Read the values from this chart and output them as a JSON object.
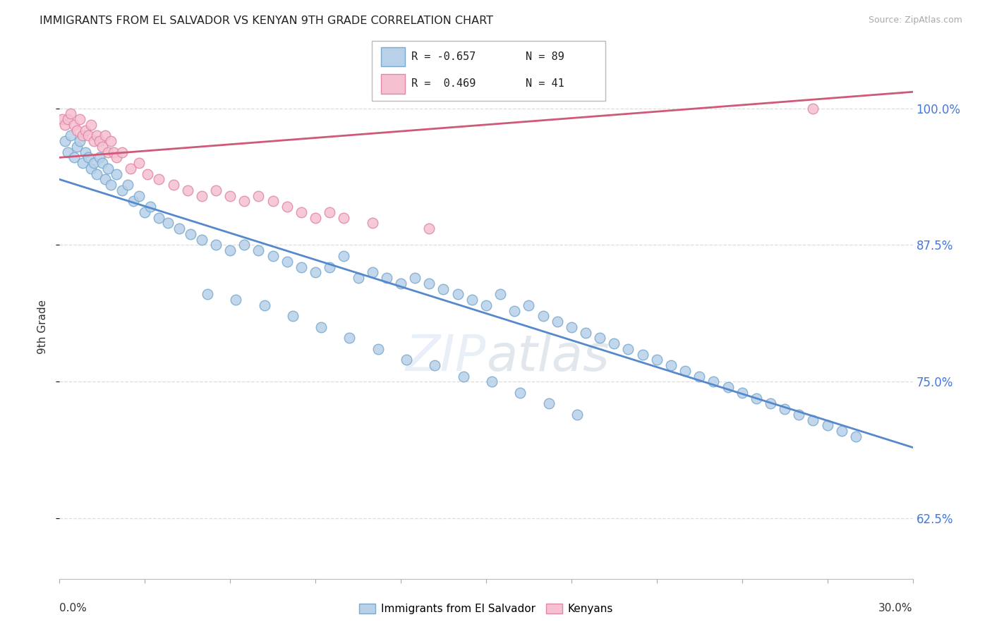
{
  "title": "IMMIGRANTS FROM EL SALVADOR VS KENYAN 9TH GRADE CORRELATION CHART",
  "source": "Source: ZipAtlas.com",
  "ylabel": "9th Grade",
  "yticks": [
    62.5,
    75.0,
    87.5,
    100.0
  ],
  "ytick_labels": [
    "62.5%",
    "75.0%",
    "87.5%",
    "100.0%"
  ],
  "xlim": [
    0.0,
    30.0
  ],
  "ylim": [
    57.0,
    103.0
  ],
  "legend_blue_r": "-0.657",
  "legend_blue_n": "89",
  "legend_pink_r": "0.469",
  "legend_pink_n": "41",
  "legend_blue_label": "Immigrants from El Salvador",
  "legend_pink_label": "Kenyans",
  "blue_color": "#b8d0e8",
  "blue_edge": "#7aaace",
  "pink_color": "#f5c0d0",
  "pink_edge": "#e088a8",
  "blue_line_color": "#5588cc",
  "pink_line_color": "#d05878",
  "watermark": "ZIPatlas",
  "blue_line_x0": 0.0,
  "blue_line_y0": 93.5,
  "blue_line_x1": 30.0,
  "blue_line_y1": 69.0,
  "pink_line_x0": 0.0,
  "pink_line_y0": 95.5,
  "pink_line_x1": 30.0,
  "pink_line_y1": 101.5,
  "blue_scatter_x": [
    0.2,
    0.3,
    0.4,
    0.5,
    0.6,
    0.7,
    0.8,
    0.9,
    1.0,
    1.1,
    1.2,
    1.3,
    1.4,
    1.5,
    1.6,
    1.7,
    1.8,
    2.0,
    2.2,
    2.4,
    2.6,
    2.8,
    3.0,
    3.2,
    3.5,
    3.8,
    4.2,
    4.6,
    5.0,
    5.5,
    6.0,
    6.5,
    7.0,
    7.5,
    8.0,
    8.5,
    9.0,
    9.5,
    10.0,
    10.5,
    11.0,
    11.5,
    12.0,
    12.5,
    13.0,
    13.5,
    14.0,
    14.5,
    15.0,
    15.5,
    16.0,
    16.5,
    17.0,
    17.5,
    18.0,
    18.5,
    19.0,
    19.5,
    20.0,
    20.5,
    21.0,
    21.5,
    22.0,
    22.5,
    23.0,
    23.5,
    24.0,
    24.5,
    25.0,
    25.5,
    26.0,
    26.5,
    27.0,
    27.5,
    28.0,
    5.2,
    6.2,
    7.2,
    8.2,
    9.2,
    10.2,
    11.2,
    12.2,
    13.2,
    14.2,
    15.2,
    16.2,
    17.2,
    18.2
  ],
  "blue_scatter_y": [
    97.0,
    96.0,
    97.5,
    95.5,
    96.5,
    97.0,
    95.0,
    96.0,
    95.5,
    94.5,
    95.0,
    94.0,
    95.5,
    95.0,
    93.5,
    94.5,
    93.0,
    94.0,
    92.5,
    93.0,
    91.5,
    92.0,
    90.5,
    91.0,
    90.0,
    89.5,
    89.0,
    88.5,
    88.0,
    87.5,
    87.0,
    87.5,
    87.0,
    86.5,
    86.0,
    85.5,
    85.0,
    85.5,
    86.5,
    84.5,
    85.0,
    84.5,
    84.0,
    84.5,
    84.0,
    83.5,
    83.0,
    82.5,
    82.0,
    83.0,
    81.5,
    82.0,
    81.0,
    80.5,
    80.0,
    79.5,
    79.0,
    78.5,
    78.0,
    77.5,
    77.0,
    76.5,
    76.0,
    75.5,
    75.0,
    74.5,
    74.0,
    73.5,
    73.0,
    72.5,
    72.0,
    71.5,
    71.0,
    70.5,
    70.0,
    83.0,
    82.5,
    82.0,
    81.0,
    80.0,
    79.0,
    78.0,
    77.0,
    76.5,
    75.5,
    75.0,
    74.0,
    73.0,
    72.0
  ],
  "pink_scatter_x": [
    0.1,
    0.2,
    0.3,
    0.4,
    0.5,
    0.6,
    0.7,
    0.8,
    0.9,
    1.0,
    1.1,
    1.2,
    1.3,
    1.4,
    1.5,
    1.6,
    1.7,
    1.8,
    1.9,
    2.0,
    2.2,
    2.5,
    2.8,
    3.1,
    3.5,
    4.0,
    4.5,
    5.0,
    5.5,
    6.0,
    6.5,
    7.0,
    7.5,
    8.0,
    8.5,
    9.0,
    9.5,
    10.0,
    11.0,
    13.0,
    26.5
  ],
  "pink_scatter_y": [
    99.0,
    98.5,
    99.0,
    99.5,
    98.5,
    98.0,
    99.0,
    97.5,
    98.0,
    97.5,
    98.5,
    97.0,
    97.5,
    97.0,
    96.5,
    97.5,
    96.0,
    97.0,
    96.0,
    95.5,
    96.0,
    94.5,
    95.0,
    94.0,
    93.5,
    93.0,
    92.5,
    92.0,
    92.5,
    92.0,
    91.5,
    92.0,
    91.5,
    91.0,
    90.5,
    90.0,
    90.5,
    90.0,
    89.5,
    89.0,
    100.0
  ]
}
